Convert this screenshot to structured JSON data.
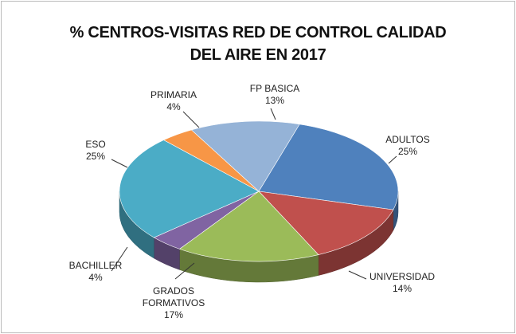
{
  "chart_data": {
    "type": "pie3d",
    "title": [
      "% CENTROS-VISITAS RED DE CONTROL CALIDAD",
      "DEL AIRE EN 2017"
    ],
    "categories": [
      "ADULTOS",
      "UNIVERSIDAD",
      "GRADOS FORMATIVOS",
      "BACHILLER",
      "ESO",
      "PRIMARIA",
      "FP BASICA"
    ],
    "values": [
      25,
      14,
      17,
      4,
      25,
      4,
      13
    ],
    "value_labels": [
      "25%",
      "14%",
      "17%",
      "4%",
      "25%",
      "4%",
      "13%"
    ],
    "colors": [
      "#4f81bd",
      "#c0504d",
      "#9bbb59",
      "#8064a2",
      "#4bacc6",
      "#f79646",
      "#95b3d7"
    ]
  }
}
